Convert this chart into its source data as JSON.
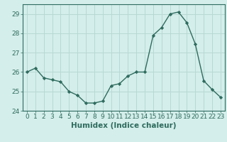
{
  "x": [
    0,
    1,
    2,
    3,
    4,
    5,
    6,
    7,
    8,
    9,
    10,
    11,
    12,
    13,
    14,
    15,
    16,
    17,
    18,
    19,
    20,
    21,
    22,
    23
  ],
  "y": [
    26.0,
    26.2,
    25.7,
    25.6,
    25.5,
    25.0,
    24.8,
    24.4,
    24.4,
    24.5,
    25.3,
    25.4,
    25.8,
    26.0,
    26.0,
    27.9,
    28.3,
    29.0,
    29.1,
    28.55,
    27.45,
    25.55,
    25.1,
    24.7
  ],
  "xlabel": "Humidex (Indice chaleur)",
  "ylim": [
    24,
    29.5
  ],
  "xlim": [
    -0.5,
    23.5
  ],
  "yticks": [
    24,
    25,
    26,
    27,
    28,
    29
  ],
  "xticks": [
    0,
    1,
    2,
    3,
    4,
    5,
    6,
    7,
    8,
    9,
    10,
    11,
    12,
    13,
    14,
    15,
    16,
    17,
    18,
    19,
    20,
    21,
    22,
    23
  ],
  "line_color": "#2e6b5e",
  "marker_color": "#2e6b5e",
  "bg_color": "#d4eeeb",
  "grid_color": "#b8d8d4",
  "tick_label_fontsize": 6.5,
  "xlabel_fontsize": 7.5,
  "marker": "D",
  "marker_size": 2.2,
  "line_width": 1.0
}
